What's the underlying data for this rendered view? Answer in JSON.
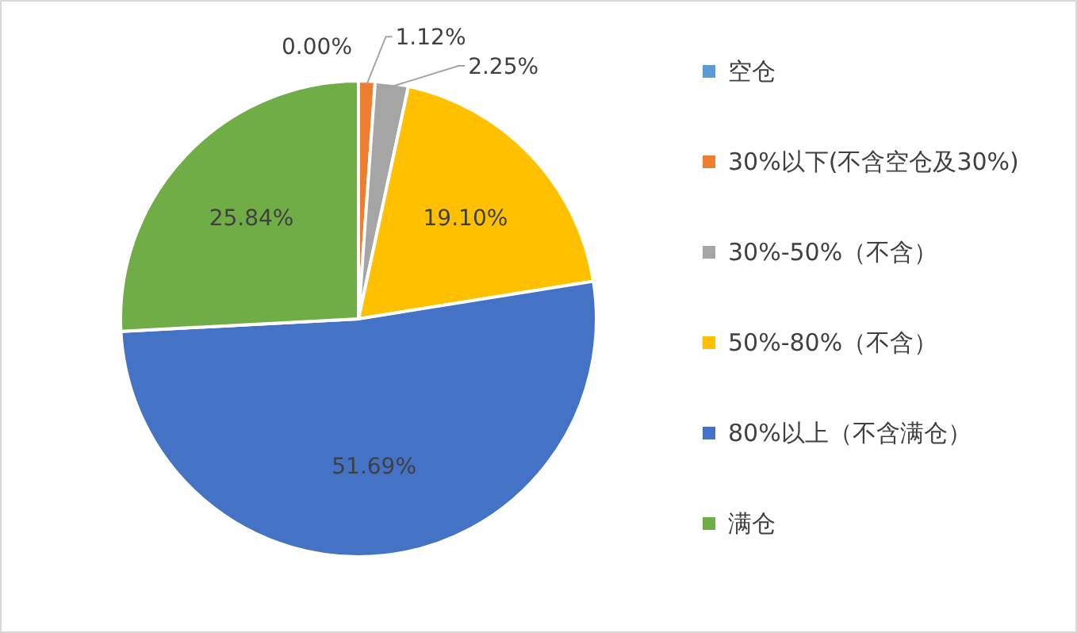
{
  "chart_data": {
    "type": "pie",
    "categories": [
      "空仓",
      "30%以下(不含空仓及30%)",
      "30%-50%（不含）",
      "50%-80%（不含）",
      "80%以上（不含满仓）",
      "满仓"
    ],
    "values": [
      0,
      1.12,
      2.25,
      19.1,
      51.69,
      25.84
    ],
    "value_labels": [
      "0.00%",
      "1.12%",
      "2.25%",
      "19.10%",
      "51.69%",
      "25.84%"
    ],
    "colors": [
      "#5b9bd5",
      "#ed7d31",
      "#a5a5a5",
      "#ffc000",
      "#4472c4",
      "#70ad47"
    ],
    "legend": "right"
  }
}
